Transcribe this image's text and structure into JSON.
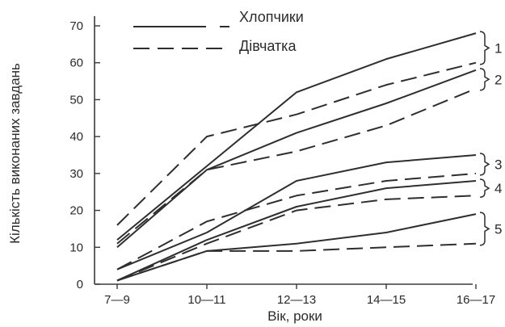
{
  "chart_data": {
    "type": "line",
    "title": "",
    "xlabel": "Вік, роки",
    "ylabel": "Кількість виконаних завдань",
    "categories": [
      "7—9",
      "10—11",
      "12—13",
      "14—15",
      "16—17"
    ],
    "ylim": [
      0,
      70
    ],
    "yticks": [
      0,
      10,
      20,
      30,
      40,
      50,
      60,
      70
    ],
    "grid": false,
    "legend": {
      "placement": "top-center",
      "entries": [
        {
          "label": "Хлопчики",
          "style": "solid"
        },
        {
          "label": "Дівчатка",
          "style": "dashed"
        }
      ]
    },
    "groups": [
      "1",
      "2",
      "3",
      "4",
      "5"
    ],
    "series": [
      {
        "group": "1",
        "style": "solid",
        "values": [
          12,
          32,
          52,
          61,
          68
        ]
      },
      {
        "group": "1",
        "style": "dashed",
        "values": [
          16,
          40,
          46,
          54,
          60
        ]
      },
      {
        "group": "2",
        "style": "solid",
        "values": [
          10,
          31,
          41,
          49,
          58
        ]
      },
      {
        "group": "2",
        "style": "dashed",
        "values": [
          11,
          31,
          36,
          43,
          53
        ]
      },
      {
        "group": "3",
        "style": "solid",
        "values": [
          4,
          14,
          28,
          33,
          35
        ]
      },
      {
        "group": "3",
        "style": "dashed",
        "values": [
          4,
          17,
          24,
          28,
          30
        ]
      },
      {
        "group": "4",
        "style": "solid",
        "values": [
          1,
          12,
          21,
          26,
          28
        ]
      },
      {
        "group": "4",
        "style": "dashed",
        "values": [
          1,
          11,
          20,
          23,
          24
        ]
      },
      {
        "group": "5",
        "style": "solid",
        "values": [
          1,
          9,
          11,
          14,
          19
        ]
      },
      {
        "group": "5",
        "style": "dashed",
        "values": [
          1,
          9,
          9,
          10,
          11
        ]
      }
    ],
    "colors": {
      "line": "#2e2e2e",
      "axis": "#3a3a3a",
      "text": "#2b2b2b"
    }
  }
}
